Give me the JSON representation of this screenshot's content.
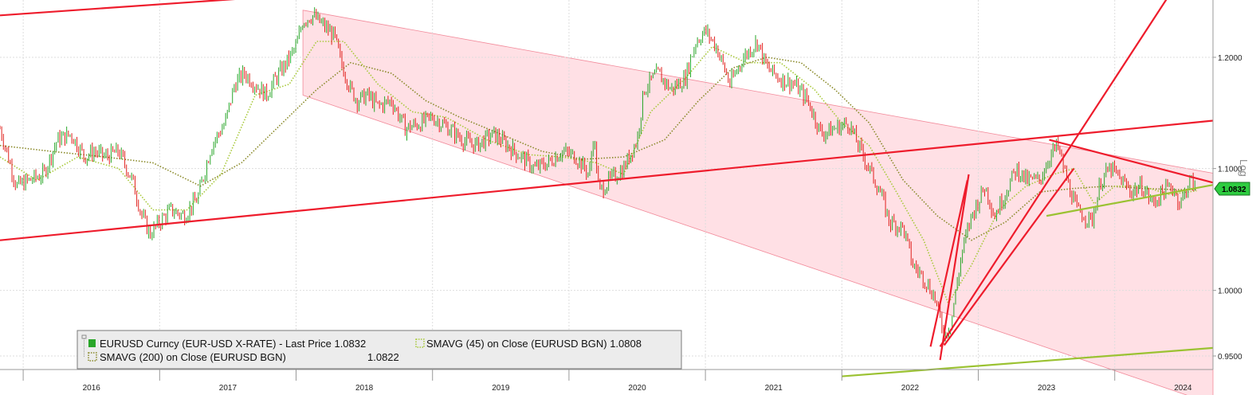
{
  "chart_data": {
    "type": "line",
    "title": "",
    "xlabel": "",
    "ylabel": "",
    "scale": "log",
    "y_axis_title": "Log",
    "ylim": [
      0.94,
      1.255
    ],
    "xlim": [
      2015.83,
      2024.72
    ],
    "y_ticks": [
      {
        "value": 1.2,
        "label": "1.2000"
      },
      {
        "value": 1.1,
        "label": "1.1000"
      },
      {
        "value": 1.0,
        "label": "1.0000"
      },
      {
        "value": 0.95,
        "label": "0.9500"
      }
    ],
    "x_ticks": [
      {
        "value": 2016.5,
        "label": "2016"
      },
      {
        "value": 2017.5,
        "label": "2017"
      },
      {
        "value": 2018.5,
        "label": "2018"
      },
      {
        "value": 2019.5,
        "label": "2019"
      },
      {
        "value": 2020.5,
        "label": "2020"
      },
      {
        "value": 2021.5,
        "label": "2021"
      },
      {
        "value": 2022.5,
        "label": "2022"
      },
      {
        "value": 2023.5,
        "label": "2023"
      },
      {
        "value": 2024.5,
        "label": "2024"
      }
    ],
    "x_dividers": [
      2016.0,
      2017.0,
      2018.0,
      2019.0,
      2020.0,
      2021.0,
      2022.0,
      2023.0,
      2024.0
    ],
    "grid": true,
    "legend_position": "bottom-left",
    "last_price_tag": "1.0832",
    "series": [
      {
        "name": "EURUSD Curncy (EUR-USD X-RATE) - Last Price",
        "last_value": "1.0832",
        "color": "#e0201c",
        "up_color": "#2aa62a",
        "style": "candles",
        "points": [
          [
            2015.83,
            1.135
          ],
          [
            2015.95,
            1.085
          ],
          [
            2016.05,
            1.09
          ],
          [
            2016.15,
            1.095
          ],
          [
            2016.25,
            1.125
          ],
          [
            2016.35,
            1.13
          ],
          [
            2016.45,
            1.11
          ],
          [
            2016.52,
            1.115
          ],
          [
            2016.6,
            1.11
          ],
          [
            2016.7,
            1.115
          ],
          [
            2016.8,
            1.09
          ],
          [
            2016.87,
            1.06
          ],
          [
            2016.93,
            1.045
          ],
          [
            2017.0,
            1.055
          ],
          [
            2017.08,
            1.065
          ],
          [
            2017.18,
            1.06
          ],
          [
            2017.28,
            1.075
          ],
          [
            2017.38,
            1.12
          ],
          [
            2017.48,
            1.14
          ],
          [
            2017.55,
            1.175
          ],
          [
            2017.62,
            1.185
          ],
          [
            2017.7,
            1.175
          ],
          [
            2017.78,
            1.165
          ],
          [
            2017.85,
            1.18
          ],
          [
            2017.93,
            1.195
          ],
          [
            2018.0,
            1.21
          ],
          [
            2018.05,
            1.235
          ],
          [
            2018.12,
            1.24
          ],
          [
            2018.2,
            1.23
          ],
          [
            2018.28,
            1.22
          ],
          [
            2018.33,
            1.195
          ],
          [
            2018.4,
            1.17
          ],
          [
            2018.45,
            1.16
          ],
          [
            2018.52,
            1.165
          ],
          [
            2018.6,
            1.155
          ],
          [
            2018.7,
            1.16
          ],
          [
            2018.8,
            1.135
          ],
          [
            2018.92,
            1.14
          ],
          [
            2019.0,
            1.145
          ],
          [
            2019.12,
            1.135
          ],
          [
            2019.22,
            1.125
          ],
          [
            2019.32,
            1.12
          ],
          [
            2019.45,
            1.13
          ],
          [
            2019.55,
            1.12
          ],
          [
            2019.65,
            1.11
          ],
          [
            2019.75,
            1.1
          ],
          [
            2019.85,
            1.105
          ],
          [
            2019.95,
            1.115
          ],
          [
            2020.05,
            1.11
          ],
          [
            2020.15,
            1.095
          ],
          [
            2020.18,
            1.13
          ],
          [
            2020.22,
            1.08
          ],
          [
            2020.3,
            1.09
          ],
          [
            2020.4,
            1.1
          ],
          [
            2020.5,
            1.125
          ],
          [
            2020.55,
            1.17
          ],
          [
            2020.65,
            1.185
          ],
          [
            2020.75,
            1.17
          ],
          [
            2020.85,
            1.18
          ],
          [
            2020.93,
            1.215
          ],
          [
            2021.0,
            1.225
          ],
          [
            2021.08,
            1.21
          ],
          [
            2021.18,
            1.175
          ],
          [
            2021.28,
            1.2
          ],
          [
            2021.38,
            1.215
          ],
          [
            2021.45,
            1.19
          ],
          [
            2021.55,
            1.18
          ],
          [
            2021.65,
            1.175
          ],
          [
            2021.75,
            1.16
          ],
          [
            2021.85,
            1.13
          ],
          [
            2021.95,
            1.135
          ],
          [
            2022.05,
            1.14
          ],
          [
            2022.12,
            1.12
          ],
          [
            2022.2,
            1.1
          ],
          [
            2022.28,
            1.08
          ],
          [
            2022.35,
            1.055
          ],
          [
            2022.45,
            1.05
          ],
          [
            2022.52,
            1.02
          ],
          [
            2022.6,
            1.01
          ],
          [
            2022.68,
            0.995
          ],
          [
            2022.75,
            0.965
          ],
          [
            2022.8,
            0.975
          ],
          [
            2022.88,
            1.03
          ],
          [
            2022.95,
            1.06
          ],
          [
            2023.05,
            1.085
          ],
          [
            2023.12,
            1.06
          ],
          [
            2023.2,
            1.08
          ],
          [
            2023.28,
            1.1
          ],
          [
            2023.35,
            1.09
          ],
          [
            2023.45,
            1.09
          ],
          [
            2023.52,
            1.11
          ],
          [
            2023.58,
            1.12
          ],
          [
            2023.65,
            1.09
          ],
          [
            2023.72,
            1.065
          ],
          [
            2023.78,
            1.06
          ],
          [
            2023.83,
            1.055
          ],
          [
            2023.9,
            1.09
          ],
          [
            2023.97,
            1.1
          ],
          [
            2024.05,
            1.09
          ],
          [
            2024.12,
            1.08
          ],
          [
            2024.2,
            1.085
          ],
          [
            2024.28,
            1.07
          ],
          [
            2024.35,
            1.08
          ],
          [
            2024.42,
            1.085
          ],
          [
            2024.48,
            1.07
          ],
          [
            2024.55,
            1.09
          ],
          [
            2024.6,
            1.083
          ]
        ]
      },
      {
        "name": "SMAVG (45)  on Close (EURUSD BGN)",
        "last_value": "1.0808",
        "color": "#a8c93a",
        "style": "dotted",
        "points": [
          [
            2015.83,
            1.11
          ],
          [
            2016.1,
            1.09
          ],
          [
            2016.4,
            1.11
          ],
          [
            2016.7,
            1.1
          ],
          [
            2016.95,
            1.065
          ],
          [
            2017.2,
            1.065
          ],
          [
            2017.45,
            1.095
          ],
          [
            2017.7,
            1.165
          ],
          [
            2017.95,
            1.175
          ],
          [
            2018.15,
            1.215
          ],
          [
            2018.35,
            1.215
          ],
          [
            2018.6,
            1.175
          ],
          [
            2018.85,
            1.15
          ],
          [
            2019.1,
            1.145
          ],
          [
            2019.4,
            1.125
          ],
          [
            2019.7,
            1.112
          ],
          [
            2019.95,
            1.11
          ],
          [
            2020.2,
            1.105
          ],
          [
            2020.4,
            1.095
          ],
          [
            2020.6,
            1.15
          ],
          [
            2020.85,
            1.18
          ],
          [
            2021.05,
            1.21
          ],
          [
            2021.3,
            1.195
          ],
          [
            2021.55,
            1.195
          ],
          [
            2021.8,
            1.17
          ],
          [
            2022.0,
            1.14
          ],
          [
            2022.2,
            1.12
          ],
          [
            2022.4,
            1.08
          ],
          [
            2022.6,
            1.04
          ],
          [
            2022.78,
            0.99
          ],
          [
            2022.95,
            1.02
          ],
          [
            2023.15,
            1.065
          ],
          [
            2023.35,
            1.085
          ],
          [
            2023.55,
            1.095
          ],
          [
            2023.7,
            1.1
          ],
          [
            2023.85,
            1.07
          ],
          [
            2024.0,
            1.085
          ],
          [
            2024.2,
            1.085
          ],
          [
            2024.4,
            1.078
          ],
          [
            2024.6,
            1.081
          ]
        ]
      },
      {
        "name": "SMAVG (200)  on Close (EURUSD BGN)",
        "last_value": "1.0822",
        "color": "#8a8a2a",
        "style": "dotted",
        "points": [
          [
            2015.83,
            1.12
          ],
          [
            2016.2,
            1.115
          ],
          [
            2016.6,
            1.11
          ],
          [
            2016.95,
            1.105
          ],
          [
            2017.3,
            1.085
          ],
          [
            2017.6,
            1.105
          ],
          [
            2017.9,
            1.14
          ],
          [
            2018.15,
            1.17
          ],
          [
            2018.4,
            1.195
          ],
          [
            2018.7,
            1.185
          ],
          [
            2018.95,
            1.16
          ],
          [
            2019.2,
            1.145
          ],
          [
            2019.5,
            1.13
          ],
          [
            2019.8,
            1.115
          ],
          [
            2020.1,
            1.108
          ],
          [
            2020.4,
            1.11
          ],
          [
            2020.7,
            1.125
          ],
          [
            2020.95,
            1.16
          ],
          [
            2021.2,
            1.19
          ],
          [
            2021.45,
            1.2
          ],
          [
            2021.7,
            1.195
          ],
          [
            2021.95,
            1.17
          ],
          [
            2022.2,
            1.14
          ],
          [
            2022.45,
            1.09
          ],
          [
            2022.7,
            1.06
          ],
          [
            2022.95,
            1.04
          ],
          [
            2023.2,
            1.055
          ],
          [
            2023.45,
            1.08
          ],
          [
            2023.7,
            1.083
          ],
          [
            2023.95,
            1.085
          ],
          [
            2024.2,
            1.083
          ],
          [
            2024.45,
            1.082
          ],
          [
            2024.6,
            1.082
          ]
        ]
      }
    ],
    "annotations": {
      "channel": {
        "color": "#ffd6dc",
        "top": [
          [
            2018.05,
            1.245
          ],
          [
            2024.72,
            1.096
          ]
        ],
        "bottom": [
          [
            2018.05,
            1.165
          ],
          [
            2024.72,
            0.915
          ]
        ]
      },
      "trendlines_red": [
        [
          [
            2015.83,
            1.24
          ],
          [
            2018.0,
            1.26
          ]
        ],
        [
          [
            2015.83,
            1.04
          ],
          [
            2024.72,
            1.142
          ]
        ],
        [
          [
            2022.72,
            0.957
          ],
          [
            2024.4,
            1.26
          ]
        ],
        [
          [
            2022.72,
            0.947
          ],
          [
            2022.93,
            1.095
          ]
        ],
        [
          [
            2022.75,
            0.958
          ],
          [
            2023.7,
            1.1
          ]
        ],
        [
          [
            2022.65,
            0.957
          ],
          [
            2022.92,
            1.09
          ]
        ],
        [
          [
            2023.52,
            1.125
          ],
          [
            2024.72,
            1.088
          ]
        ]
      ],
      "trendlines_green": [
        [
          [
            2023.5,
            1.06
          ],
          [
            2024.72,
            1.086
          ]
        ],
        [
          [
            2022.0,
            0.935
          ],
          [
            2024.72,
            0.956
          ]
        ]
      ]
    }
  },
  "legend": {
    "line1_price": "EURUSD Curncy (EUR-USD X-RATE) - Last Price 1.0832",
    "line1_sma45": "SMAVG (45)  on Close (EURUSD BGN) 1.0808",
    "line2_sma200": "SMAVG (200)  on Close (EURUSD BGN)",
    "line2_value": "1.0822"
  },
  "colors": {
    "price_down": "#e0201c",
    "price_up": "#2aa62a",
    "sma45": "#a8c93a",
    "sma200": "#8a8a2a",
    "trend_red": "#ee1c2c",
    "trend_green": "#9bc232",
    "channel_fill": "#ffd6dc",
    "grid": "#dddddd",
    "tag_fill": "#2ecc40"
  }
}
